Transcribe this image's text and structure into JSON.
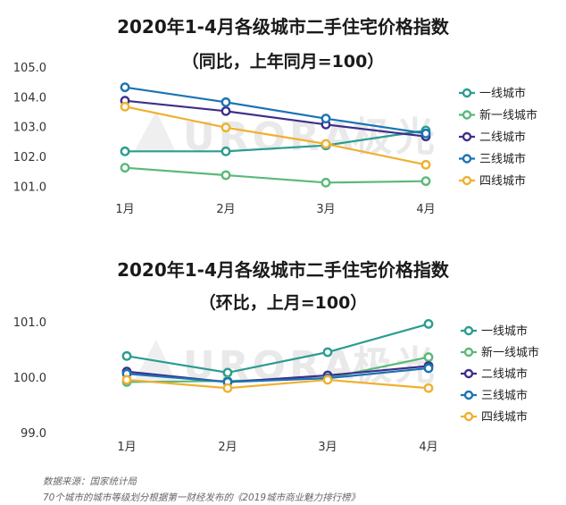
{
  "chart_data": [
    {
      "type": "line",
      "title": "2020年1-4月各级城市二手住宅价格指数",
      "subtitle": "（同比，上年同月=100）",
      "categories": [
        "1月",
        "2月",
        "3月",
        "4月"
      ],
      "ylim": [
        100.8,
        105.0
      ],
      "yticks": [
        "101.0",
        "102.0",
        "103.0",
        "104.0",
        "105.0"
      ],
      "ytick_values": [
        101.0,
        102.0,
        103.0,
        104.0,
        105.0
      ],
      "grid": false,
      "legend_position": "right",
      "series": [
        {
          "name": "一线城市",
          "color": "#2a9d8f",
          "values": [
            102.2,
            102.2,
            102.4,
            102.9
          ]
        },
        {
          "name": "新一线城市",
          "color": "#5bb87a",
          "values": [
            101.65,
            101.4,
            101.15,
            101.2
          ]
        },
        {
          "name": "二线城市",
          "color": "#3d2f8a",
          "values": [
            103.9,
            103.55,
            103.1,
            102.7
          ]
        },
        {
          "name": "三线城市",
          "color": "#1b73b3",
          "values": [
            104.35,
            103.85,
            103.3,
            102.8
          ]
        },
        {
          "name": "四线城市",
          "color": "#f0b030",
          "values": [
            103.7,
            103.0,
            102.45,
            101.75
          ]
        }
      ]
    },
    {
      "type": "line",
      "title": "2020年1-4月各级城市二手住宅价格指数",
      "subtitle": "（环比，上月=100）",
      "categories": [
        "1月",
        "2月",
        "3月",
        "4月"
      ],
      "ylim": [
        99.0,
        101.1
      ],
      "yticks": [
        "99.0",
        "100.0",
        "101.0"
      ],
      "ytick_values": [
        99.0,
        100.0,
        101.0
      ],
      "grid": false,
      "legend_position": "right",
      "series": [
        {
          "name": "一线城市",
          "color": "#2a9d8f",
          "values": [
            100.4,
            100.1,
            100.47,
            100.98
          ]
        },
        {
          "name": "新一线城市",
          "color": "#5bb87a",
          "values": [
            99.93,
            99.95,
            100.0,
            100.38
          ]
        },
        {
          "name": "二线城市",
          "color": "#3d2f8a",
          "values": [
            100.12,
            99.93,
            100.05,
            100.22
          ]
        },
        {
          "name": "三线城市",
          "color": "#1b73b3",
          "values": [
            100.08,
            99.93,
            100.0,
            100.18
          ]
        },
        {
          "name": "四线城市",
          "color": "#f0b030",
          "values": [
            99.97,
            99.82,
            99.97,
            99.82
          ]
        }
      ]
    }
  ],
  "watermark": {
    "text": "URORA",
    "brand": "极光"
  },
  "footer": {
    "source": "数据来源：国家统计局",
    "note": "70个城市的城市等级划分根据第一财经发布的《2019城市商业魅力排行榜》"
  }
}
